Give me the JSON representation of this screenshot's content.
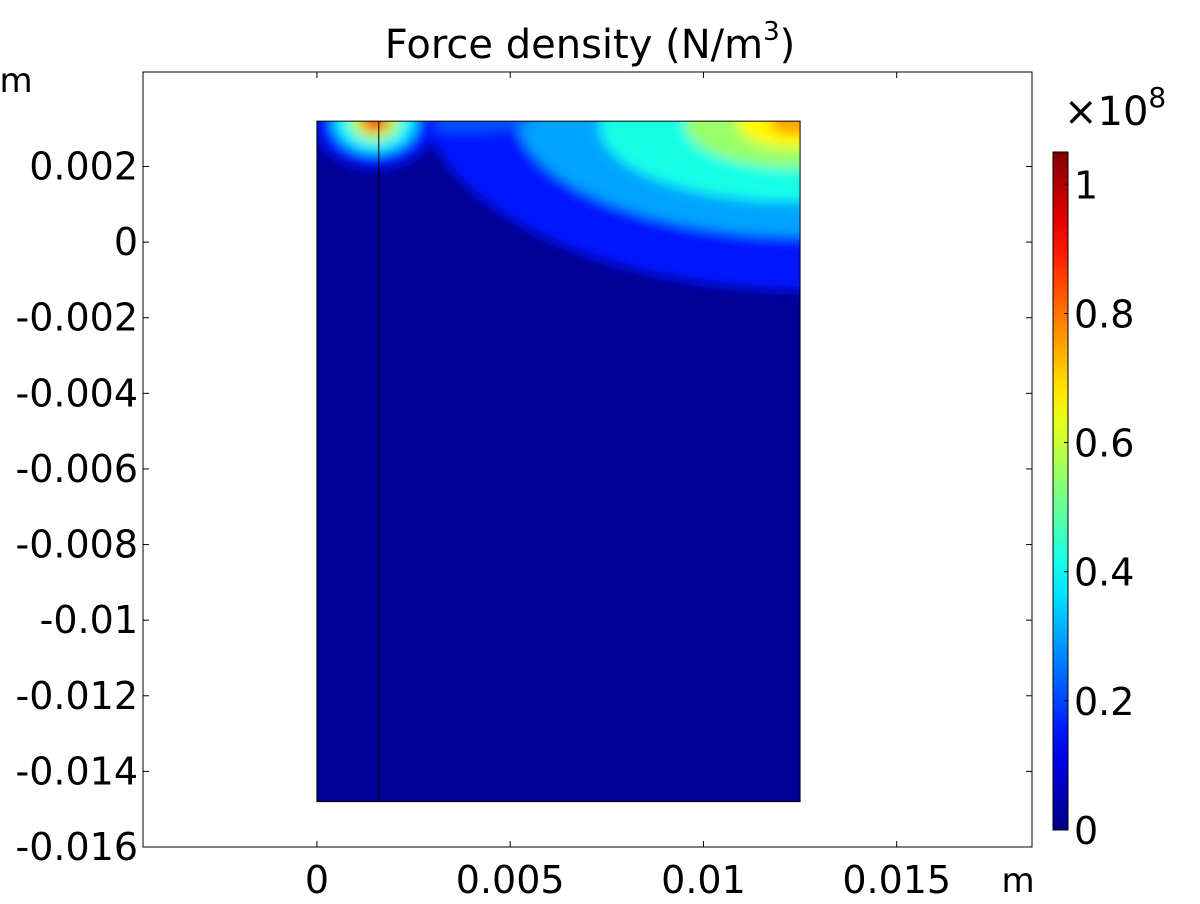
{
  "chart_data": {
    "type": "heatmap",
    "title": "Force density (N/m",
    "title_superscript": "3",
    "title_suffix": ")",
    "xlabel": "m",
    "ylabel": "m",
    "xlim": [
      -0.0045,
      0.0185
    ],
    "ylim": [
      -0.016,
      0.0045
    ],
    "x_ticks": [
      {
        "value": 0,
        "label": "0"
      },
      {
        "value": 0.005,
        "label": "0.005"
      },
      {
        "value": 0.01,
        "label": "0.01"
      },
      {
        "value": 0.015,
        "label": "0.015"
      }
    ],
    "y_ticks": [
      {
        "value": 0.002,
        "label": "0.002"
      },
      {
        "value": 0,
        "label": "0"
      },
      {
        "value": -0.002,
        "label": "-0.002"
      },
      {
        "value": -0.004,
        "label": "-0.004"
      },
      {
        "value": -0.006,
        "label": "-0.006"
      },
      {
        "value": -0.008,
        "label": "-0.008"
      },
      {
        "value": -0.01,
        "label": "-0.01"
      },
      {
        "value": -0.012,
        "label": "-0.012"
      },
      {
        "value": -0.014,
        "label": "-0.014"
      },
      {
        "value": -0.016,
        "label": "-0.016"
      }
    ],
    "domain": {
      "xmin": 0,
      "xmax": 0.0125,
      "ymin": -0.0148,
      "ymax": 0.0032
    },
    "internal_boundary_x": 0.0016,
    "hotspots": [
      {
        "x": 0.0015,
        "y": 0.0032,
        "value": 0.85
      },
      {
        "x": 0.0125,
        "y": 0.0032,
        "value": 0.75
      }
    ],
    "colorbar": {
      "multiplier_base": "×10",
      "multiplier_exp": "8",
      "min": 0,
      "max": 1.05,
      "ticks": [
        {
          "value": 0,
          "label": "0"
        },
        {
          "value": 0.2,
          "label": "0.2"
        },
        {
          "value": 0.4,
          "label": "0.4"
        },
        {
          "value": 0.6,
          "label": "0.6"
        },
        {
          "value": 0.8,
          "label": "0.8"
        },
        {
          "value": 1,
          "label": "1"
        }
      ],
      "colormap": "jet"
    }
  }
}
